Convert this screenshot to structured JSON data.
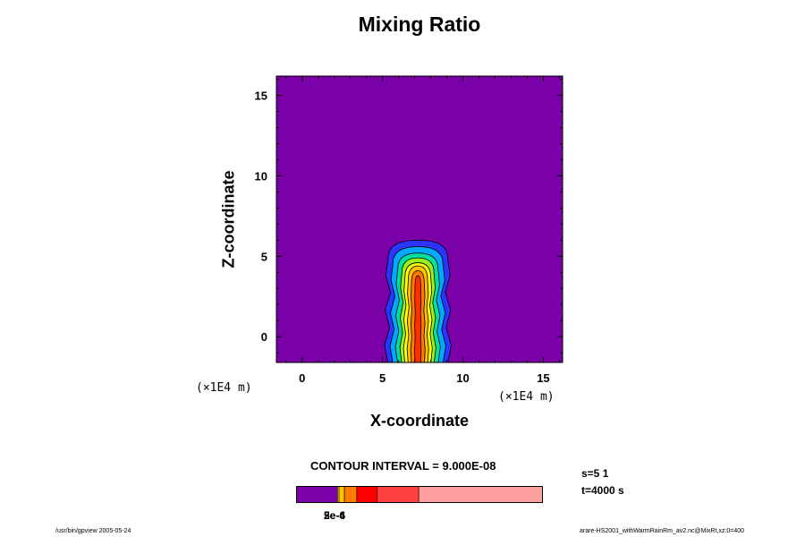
{
  "chart_data": {
    "type": "heatmap",
    "title": "Mixing Ratio",
    "xlabel": "X-coordinate",
    "ylabel": "Z-coordinate",
    "x_unit": "(×1E4 m)",
    "y_unit": "(×1E4 m)",
    "xlim": [
      -1.6,
      16.2
    ],
    "ylim": [
      -1.6,
      16.2
    ],
    "x_ticks": [
      0,
      5,
      10,
      15
    ],
    "y_ticks": [
      0,
      5,
      10,
      15
    ],
    "x_tick_labels": [
      "0",
      "5",
      "10",
      "15"
    ],
    "y_tick_labels": [
      "0",
      "5",
      "10",
      "15"
    ],
    "background_color": "#7a00a8",
    "contour_interval": "CONTOUR INTERVAL = 9.000E-08",
    "plume": {
      "center_x": 7.2,
      "base_z": -1.6,
      "levels": [
        {
          "color": "#2a36ff",
          "top": 6.0,
          "half_width": 1.85
        },
        {
          "color": "#00a8ff",
          "top": 5.6,
          "half_width": 1.55
        },
        {
          "color": "#00e0a0",
          "top": 5.2,
          "half_width": 1.25
        },
        {
          "color": "#9bef1a",
          "top": 4.9,
          "half_width": 1.0
        },
        {
          "color": "#ffff00",
          "top": 4.6,
          "half_width": 0.8
        },
        {
          "color": "#ffc000",
          "top": 4.4,
          "half_width": 0.6
        },
        {
          "color": "#ff7a00",
          "top": 4.1,
          "half_width": 0.4
        },
        {
          "color": "#ff3000",
          "top": 3.8,
          "half_width": 0.18
        }
      ]
    },
    "colorbar": {
      "segments": [
        {
          "color": "#7a00a8",
          "fraction": 0.168
        },
        {
          "color": "#ffff00",
          "fraction": 0.006
        },
        {
          "color": "#ffc000",
          "fraction": 0.022
        },
        {
          "color": "#ff7a00",
          "fraction": 0.05
        },
        {
          "color": "#ff0000",
          "fraction": 0.083
        },
        {
          "color": "#ff4040",
          "fraction": 0.168
        },
        {
          "color": "#ffa0a0",
          "fraction": 0.503
        }
      ],
      "tick_labels": [
        "2e-6",
        "5e-4"
      ]
    }
  },
  "info": {
    "s": "s=5 1",
    "t": "t=4000 s"
  },
  "footer": {
    "left": "/usr/bin/gpview 2005-05-24",
    "right": "arare-HS2001_withWarmRainRm_av2.nc@MixRt,xz:0=400"
  }
}
